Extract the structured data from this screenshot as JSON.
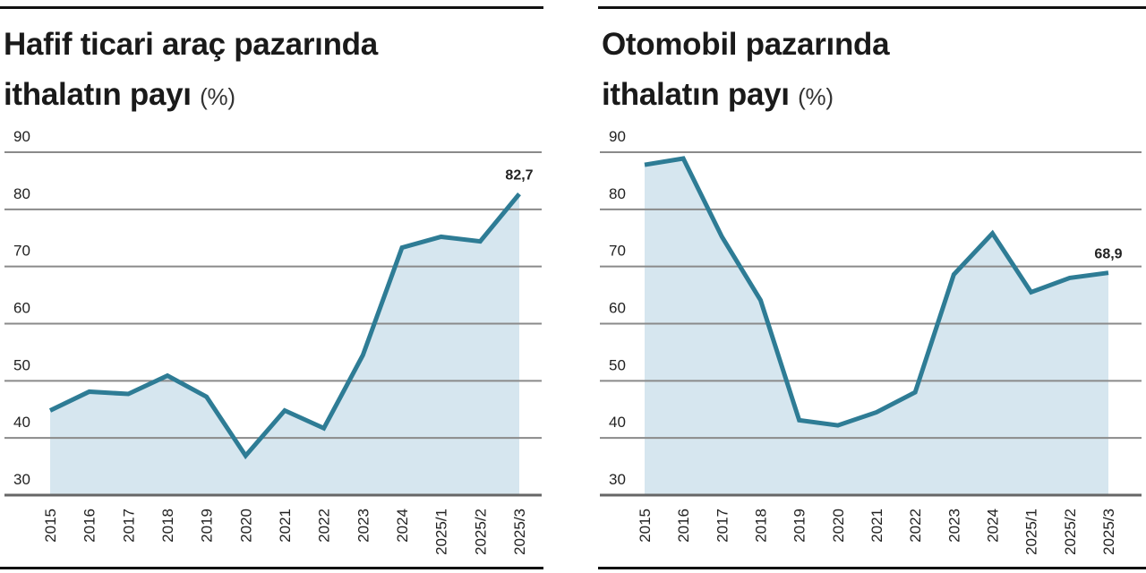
{
  "colors": {
    "line": "#2e7c95",
    "fill": "#d6e6ef",
    "grid": "#8a8a8a"
  },
  "chart_data": [
    {
      "type": "area",
      "title": "Hafif ticari araç pazarında ithalatın payı",
      "title_line1": "Hafif ticari araç pazarında",
      "title_line2": "ithalatın payı",
      "unit": "(%)",
      "categories": [
        "2015",
        "2016",
        "2017",
        "2018",
        "2019",
        "2020",
        "2021",
        "2022",
        "2023",
        "2024",
        "2025/1",
        "2025/2",
        "2025/3"
      ],
      "values": [
        44.8,
        48.1,
        47.7,
        50.9,
        47.2,
        36.9,
        44.8,
        41.7,
        54.5,
        73.3,
        75.2,
        74.4,
        82.7
      ],
      "data_label": "82,7",
      "ylim": [
        30,
        90
      ],
      "yticks": [
        "30",
        "40",
        "50",
        "60",
        "70",
        "80",
        "90"
      ],
      "grid": true
    },
    {
      "type": "area",
      "title": "Otomobil pazarında ithalatın payı",
      "title_line1": "Otomobil pazarında",
      "title_line2": "ithalatın payı",
      "unit": "(%)",
      "categories": [
        "2015",
        "2016",
        "2017",
        "2018",
        "2019",
        "2020",
        "2021",
        "2022",
        "2023",
        "2024",
        "2025/1",
        "2025/2",
        "2025/3"
      ],
      "values": [
        87.8,
        88.9,
        75.2,
        64.1,
        43.1,
        42.2,
        44.5,
        48.0,
        68.6,
        75.8,
        65.5,
        68.0,
        68.9
      ],
      "data_label": "68,9",
      "ylim": [
        30,
        90
      ],
      "yticks": [
        "30",
        "40",
        "50",
        "60",
        "70",
        "80",
        "90"
      ],
      "grid": true
    }
  ]
}
